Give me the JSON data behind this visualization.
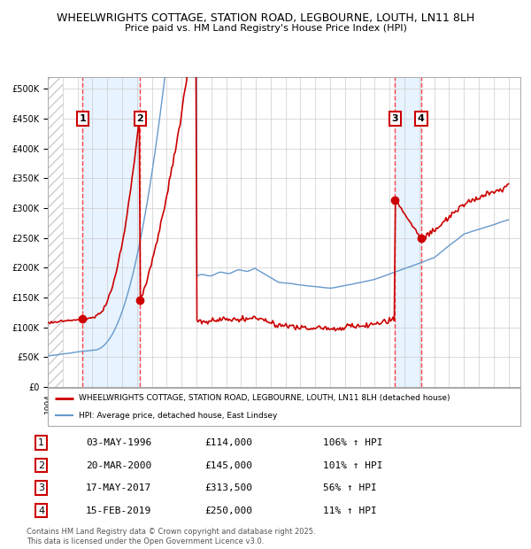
{
  "title1": "WHEELWRIGHTS COTTAGE, STATION ROAD, LEGBOURNE, LOUTH, LN11 8LH",
  "title2": "Price paid vs. HM Land Registry's House Price Index (HPI)",
  "red_label": "WHEELWRIGHTS COTTAGE, STATION ROAD, LEGBOURNE, LOUTH, LN11 8LH (detached house)",
  "blue_label": "HPI: Average price, detached house, East Lindsey",
  "footer": "Contains HM Land Registry data © Crown copyright and database right 2025.\nThis data is licensed under the Open Government Licence v3.0.",
  "purchases": [
    {
      "num": 1,
      "date": "03-MAY-1996",
      "price": 114000,
      "pct": "106%",
      "x": 1996.34
    },
    {
      "num": 2,
      "date": "20-MAR-2000",
      "price": 145000,
      "pct": "101%",
      "x": 2000.22
    },
    {
      "num": 3,
      "date": "17-MAY-2017",
      "price": 313500,
      "pct": "56%",
      "x": 2017.37
    },
    {
      "num": 4,
      "date": "15-FEB-2019",
      "price": 250000,
      "pct": "11%",
      "x": 2019.12
    }
  ],
  "red_color": "#cc0000",
  "blue_color": "#6699cc",
  "hatch_color": "#cccccc",
  "grid_color": "#cccccc",
  "dashed_color": "#ff4444",
  "shade_color": "#ddeeff",
  "ylim": [
    0,
    520000
  ],
  "yticks": [
    0,
    50000,
    100000,
    150000,
    200000,
    250000,
    300000,
    350000,
    400000,
    450000,
    500000
  ],
  "xlim": [
    1994.0,
    2025.8
  ]
}
